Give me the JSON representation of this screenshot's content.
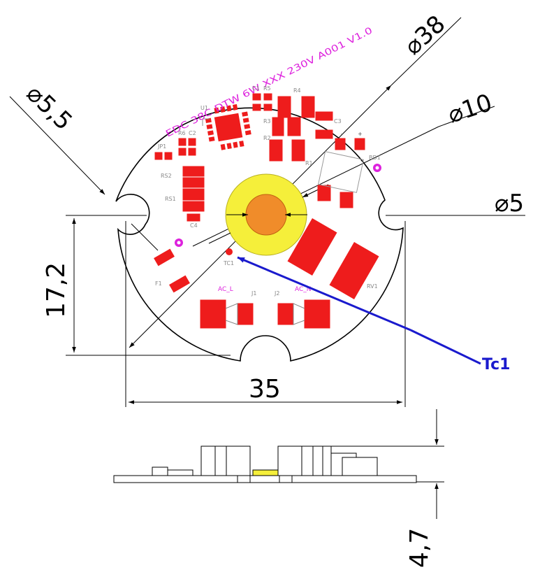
{
  "dimensions": {
    "outer_diameter": "⌀38",
    "led_ring": "⌀10",
    "led_core": "⌀5",
    "mount_hole": "⌀5,5",
    "hole_spacing_vertical": "17,2",
    "width": "35",
    "height": "4,7"
  },
  "board": {
    "silkscreen_title": "EDC 38C DTW 6W XXX 230V A001 V1.0"
  },
  "components": {
    "u1": "U1",
    "c1": "C1",
    "r5": "R5",
    "r4": "R4",
    "r3": "R3",
    "r2": "R2",
    "r1": "R1",
    "c3": "C3",
    "r6": "R6",
    "c2": "C2",
    "jp1": "JP1",
    "rs2": "RS2",
    "rs1": "RS1",
    "c4": "C4",
    "bd1": "BD1",
    "tc1_small": "TC1",
    "f1": "F1",
    "rv1": "RV1",
    "j1": "J1",
    "j2": "J2",
    "ac_l": "AC_L",
    "ac_n": "AC_N",
    "minus": "-",
    "plus": "+"
  },
  "callout": {
    "tc1": "Tc1"
  },
  "colors": {
    "pad": "#ee1c1c",
    "silk": "#dd22dd",
    "outline": "#000000",
    "led_ring": "#f5ef3a",
    "led_core": "#f08c2a",
    "callout": "#1a1acd"
  }
}
